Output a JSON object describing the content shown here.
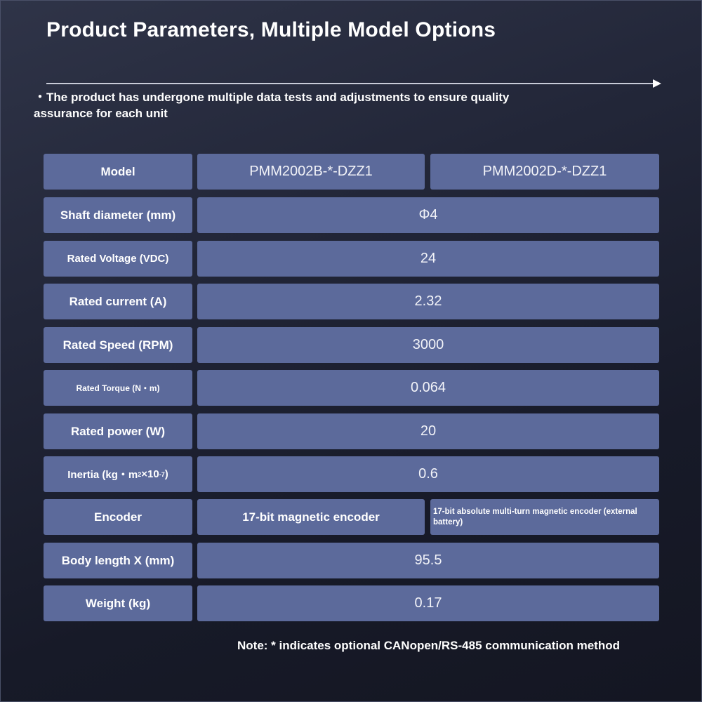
{
  "header": {
    "title": "Product Parameters, Multiple Model Options",
    "subtitle_bullet": "・",
    "subtitle": "The product has undergone multiple data tests and adjustments to ensure quality assurance for each unit"
  },
  "table": {
    "model_label": "Model",
    "models": [
      "PMM2002B-*-DZZ1",
      "PMM2002D-*-DZZ1"
    ],
    "rows": [
      {
        "label": "Shaft diameter (mm)",
        "value": "Φ4"
      },
      {
        "label": "Rated Voltage (VDC)",
        "value": "24"
      },
      {
        "label": "Rated current (A)",
        "value": "2.32"
      },
      {
        "label": "Rated Speed (RPM)",
        "value": "3000"
      },
      {
        "label": "Rated Torque (N・m)",
        "value": "0.064"
      },
      {
        "label": "Rated power (W)",
        "value": "20"
      },
      {
        "label_prefix": "Inertia (kg・m",
        "label_sup1": "2",
        "label_mid": "×10",
        "label_sup2": "-7",
        "label_suffix": ")",
        "value": "0.6"
      },
      {
        "label": "Encoder",
        "values": [
          "17-bit magnetic encoder",
          "17-bit absolute multi-turn magnetic encoder (external battery)"
        ]
      },
      {
        "label": "Body length X (mm)",
        "value": "95.5"
      },
      {
        "label": "Weight (kg)",
        "value": "0.17"
      }
    ]
  },
  "footer": {
    "note": "Note: * indicates optional CANopen/RS-485 communication method"
  }
}
